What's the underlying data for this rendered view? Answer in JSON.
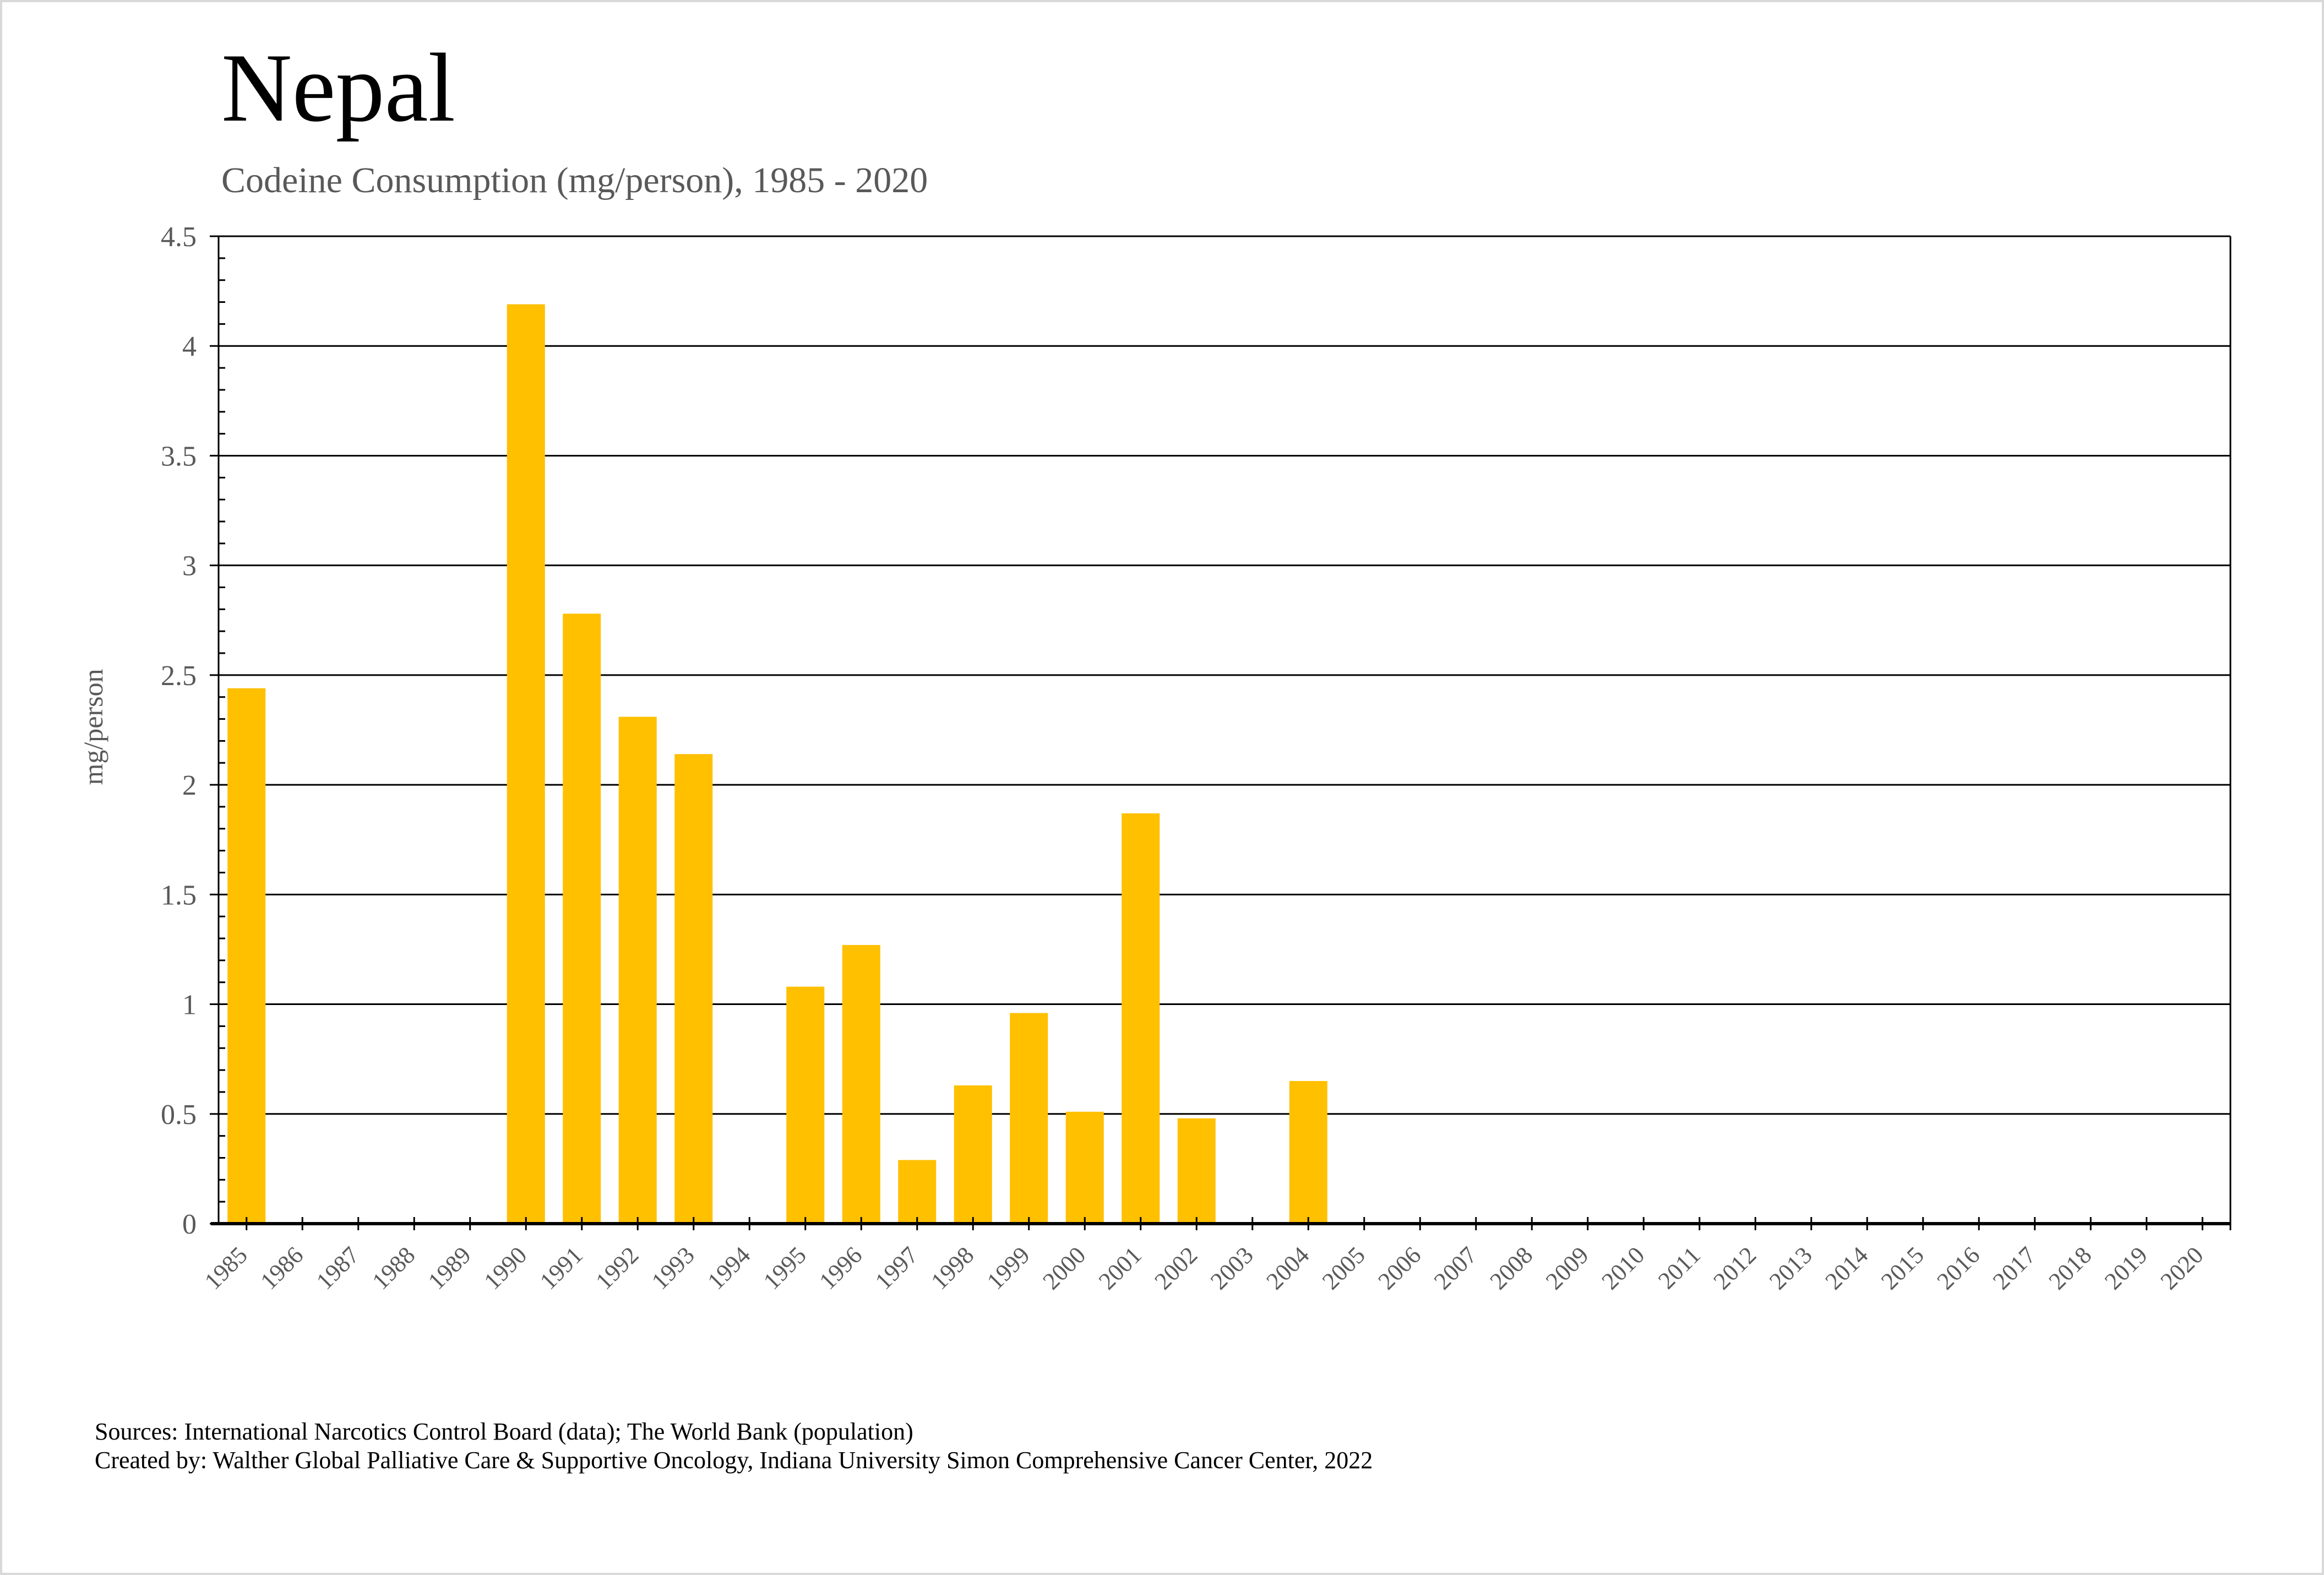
{
  "header": {
    "title": "Nepal",
    "subtitle": "Codeine Consumption (mg/person), 1985 - 2020"
  },
  "footer": {
    "sources": "Sources: International Narcotics Control Board (data); The World Bank (population)",
    "created_by": "Created by: Walther Global Palliative Care & Supportive Oncology, Indiana University Simon Comprehensive Cancer Center, 2022"
  },
  "colors": {
    "bar": "#FFC000",
    "axis": "#000000",
    "tick_label": "#595959"
  },
  "chart_data": {
    "type": "bar",
    "title": "Nepal",
    "subtitle": "Codeine Consumption (mg/person), 1985 - 2020",
    "xlabel": "",
    "ylabel": "mg/person",
    "ylim": [
      0,
      4.5
    ],
    "yticks": [
      "0",
      "0.5",
      "1",
      "1.5",
      "2",
      "2.5",
      "3",
      "3.5",
      "4",
      "4.5"
    ],
    "ytick_values": [
      0,
      0.5,
      1,
      1.5,
      2,
      2.5,
      3,
      3.5,
      4,
      4.5
    ],
    "y_minor_step": 0.1,
    "grid": true,
    "legend": "none",
    "categories": [
      "1985",
      "1986",
      "1987",
      "1988",
      "1989",
      "1990",
      "1991",
      "1992",
      "1993",
      "1994",
      "1995",
      "1996",
      "1997",
      "1998",
      "1999",
      "2000",
      "2001",
      "2002",
      "2003",
      "2004",
      "2005",
      "2006",
      "2007",
      "2008",
      "2009",
      "2010",
      "2011",
      "2012",
      "2013",
      "2014",
      "2015",
      "2016",
      "2017",
      "2018",
      "2019",
      "2020"
    ],
    "series": [
      {
        "name": "Codeine (mg/person)",
        "values": [
          2.44,
          null,
          null,
          null,
          null,
          4.19,
          2.78,
          2.31,
          2.14,
          null,
          1.08,
          1.27,
          0.29,
          0.63,
          0.96,
          0.51,
          1.87,
          0.48,
          null,
          0.65,
          null,
          null,
          null,
          null,
          null,
          null,
          null,
          null,
          null,
          null,
          null,
          null,
          null,
          null,
          null,
          null
        ]
      }
    ]
  }
}
